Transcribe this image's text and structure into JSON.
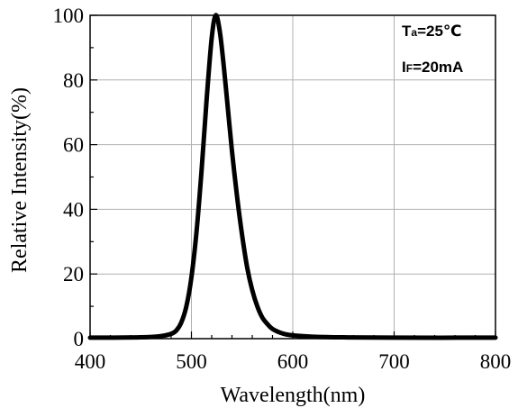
{
  "chart_data": {
    "type": "line",
    "title": "",
    "xlabel": "Wavelength(nm)",
    "ylabel": "Relative Intensity(%)",
    "xlim": [
      400,
      800
    ],
    "ylim": [
      0,
      100
    ],
    "x_ticks": [
      400,
      500,
      600,
      700,
      800
    ],
    "y_ticks": [
      0,
      20,
      40,
      60,
      80,
      100
    ],
    "grid": true,
    "legend": "none",
    "line_color": "#000000",
    "annotations": {
      "ta": {
        "main": "T",
        "sub": "a",
        "rest": "=25℃"
      },
      "if": {
        "main": "I",
        "sub": "F",
        "rest": "=20mA"
      }
    },
    "series": [
      {
        "x": [
          400,
          450,
          470,
          480,
          485,
          490,
          495,
          500,
          505,
          510,
          515,
          520,
          524,
          528,
          532,
          536,
          540,
          545,
          550,
          555,
          560,
          565,
          570,
          575,
          580,
          590,
          600,
          620,
          650,
          700,
          800
        ],
        "y": [
          0.3,
          0.4,
          0.8,
          1.5,
          2.5,
          5,
          10,
          19,
          33,
          52,
          74,
          93,
          100,
          95,
          84,
          71,
          58,
          44,
          32,
          22,
          15,
          10,
          6.5,
          4.5,
          3,
          1.6,
          1,
          0.6,
          0.4,
          0.3,
          0.3
        ]
      }
    ]
  }
}
